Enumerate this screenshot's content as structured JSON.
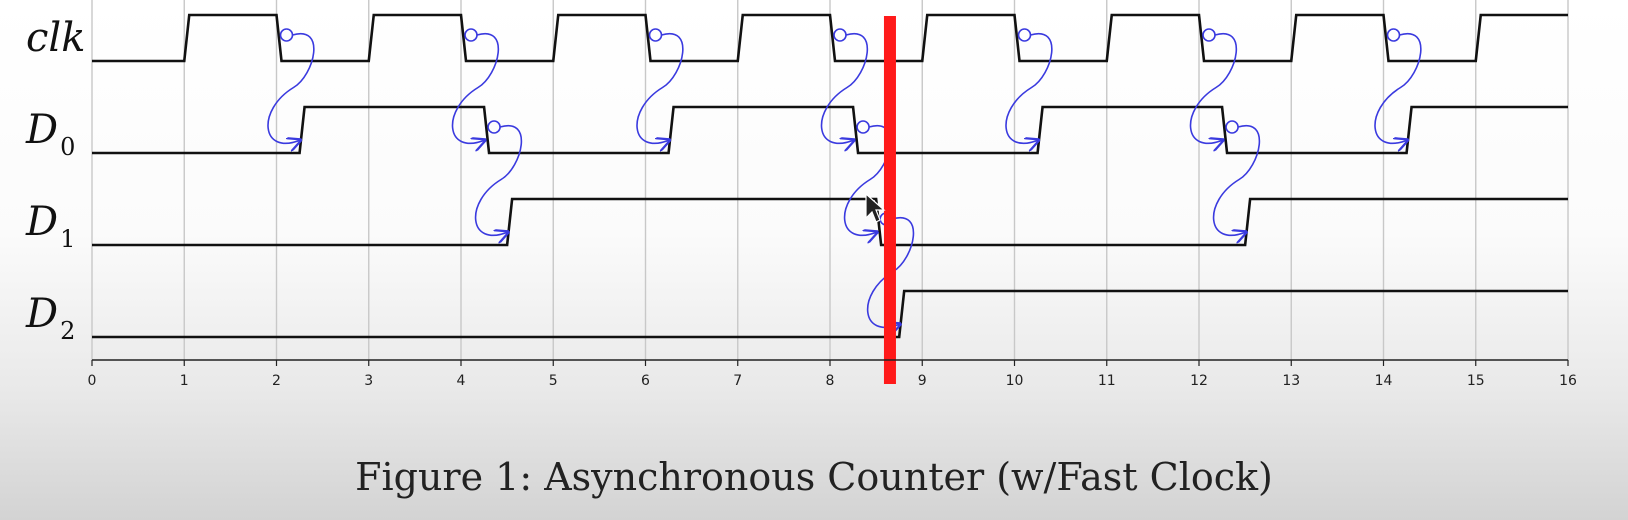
{
  "figure": {
    "caption": "Figure 1: Asynchronous Counter (w/Fast Clock)"
  },
  "signals": [
    {
      "id": "clk",
      "label": "clk",
      "sub": ""
    },
    {
      "id": "D0",
      "label": "D",
      "sub": "0"
    },
    {
      "id": "D1",
      "label": "D",
      "sub": "1"
    },
    {
      "id": "D2",
      "label": "D",
      "sub": "2"
    }
  ],
  "axis": {
    "min": 0,
    "max": 16,
    "ticks": [
      "0",
      "1",
      "2",
      "3",
      "4",
      "5",
      "6",
      "7",
      "8",
      "9",
      "10",
      "11",
      "12",
      "13",
      "14",
      "15",
      "16"
    ]
  },
  "waveforms": {
    "clk": {
      "initial": 0,
      "transitions": [
        1,
        2,
        3,
        4,
        5,
        6,
        7,
        8,
        9,
        10,
        11,
        12,
        13,
        14,
        15
      ]
    },
    "D0": {
      "initial": 0,
      "transitions": [
        2.25,
        4.25,
        6.25,
        8.25,
        10.25,
        12.25,
        14.25
      ]
    },
    "D1": {
      "initial": 0,
      "transitions": [
        4.5,
        8.5,
        12.5
      ]
    },
    "D2": {
      "initial": 0,
      "transitions": [
        8.75
      ]
    }
  },
  "causal_arrows": [
    {
      "from": "clk",
      "to": "D0",
      "t_from": 2,
      "t_to": 2.25
    },
    {
      "from": "clk",
      "to": "D0",
      "t_from": 4,
      "t_to": 4.25
    },
    {
      "from": "clk",
      "to": "D0",
      "t_from": 6,
      "t_to": 6.25
    },
    {
      "from": "clk",
      "to": "D0",
      "t_from": 8,
      "t_to": 8.25
    },
    {
      "from": "clk",
      "to": "D0",
      "t_from": 10,
      "t_to": 10.25
    },
    {
      "from": "clk",
      "to": "D0",
      "t_from": 12,
      "t_to": 12.25
    },
    {
      "from": "clk",
      "to": "D0",
      "t_from": 14,
      "t_to": 14.25
    },
    {
      "from": "D0",
      "to": "D1",
      "t_from": 4.25,
      "t_to": 4.5
    },
    {
      "from": "D0",
      "to": "D1",
      "t_from": 8.25,
      "t_to": 8.5
    },
    {
      "from": "D0",
      "to": "D1",
      "t_from": 12.25,
      "t_to": 12.5
    },
    {
      "from": "D1",
      "to": "D2",
      "t_from": 8.5,
      "t_to": 8.75
    }
  ],
  "marker": {
    "t": 8.65,
    "color": "#ff1a1a"
  },
  "colors": {
    "wave": "#111111",
    "arrow": "#3a3adf",
    "grid": "#c8c8c8"
  }
}
